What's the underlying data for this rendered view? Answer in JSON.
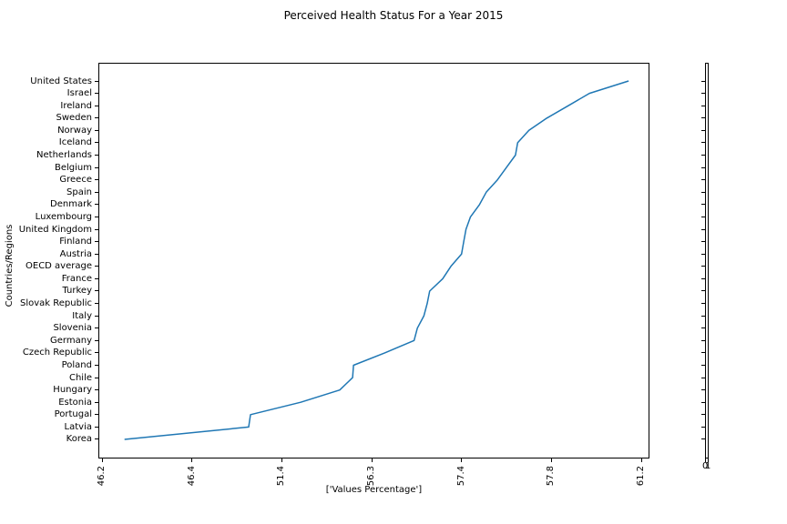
{
  "figure_title": "Perceived Health Status For a Year 2015",
  "chart_data": {
    "type": "line",
    "title": "Perceived Health Status For a Year 2015",
    "xlabel": "['Values Percentage']",
    "ylabel": "Countries/Regions",
    "grid": false,
    "legend": null,
    "line_color": "#1f77b4",
    "x_tick_labels": [
      "46.2",
      "46.4",
      "51.4",
      "56.3",
      "57.4",
      "57.8",
      "61.2"
    ],
    "categories": [
      "United States",
      "Israel",
      "Ireland",
      "Sweden",
      "Norway",
      "Iceland",
      "Netherlands",
      "Belgium",
      "Greece",
      "Spain",
      "Denmark",
      "Luxembourg",
      "United Kingdom",
      "Finland",
      "Austria",
      "OECD average",
      "France",
      "Turkey",
      "Slovak Republic",
      "Italy",
      "Slovenia",
      "Germany",
      "Czech Republic",
      "Poland",
      "Chile",
      "Hungary",
      "Estonia",
      "Portugal",
      "Latvia",
      "Korea"
    ],
    "values": [
      60.72,
      59.24,
      58.44,
      57.78,
      57.7,
      57.65,
      57.64,
      57.6,
      57.56,
      57.51,
      57.48,
      57.44,
      57.42,
      57.41,
      57.4,
      57.27,
      57.17,
      57.01,
      56.98,
      56.94,
      56.86,
      56.82,
      56.46,
      55.31,
      55.26,
      54.56,
      52.43,
      49.66,
      49.56,
      46.25
    ],
    "secondary_axis": {
      "x_tick_labels": [
        "0",
        "1"
      ],
      "y_tick_count": 30
    }
  }
}
